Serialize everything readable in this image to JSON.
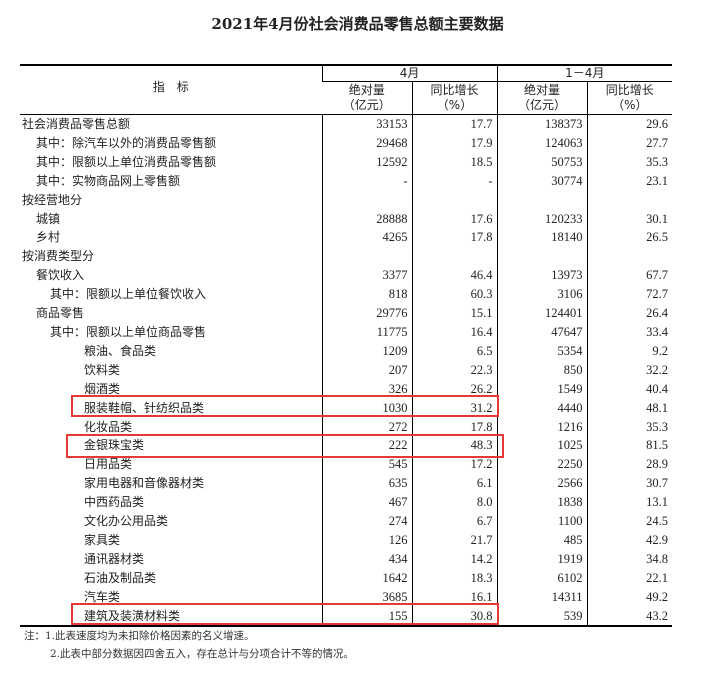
{
  "title": "2021年4月份社会消费品零售总额主要数据",
  "header": {
    "indicator": "指　标",
    "period1": "4月",
    "period2": "1－4月",
    "abs": "绝对量",
    "abs_unit": "（亿元）",
    "yoy": "同比增长",
    "yoy_unit": "（%）"
  },
  "rows": [
    {
      "label": "社会消费品零售总额",
      "level": 0,
      "v": [
        "33153",
        "17.7",
        "138373",
        "29.6"
      ]
    },
    {
      "label": "其中：除汽车以外的消费品零售额",
      "level": 1,
      "v": [
        "29468",
        "17.9",
        "124063",
        "27.7"
      ]
    },
    {
      "label": "其中：限额以上单位消费品零售额",
      "level": 1,
      "v": [
        "12592",
        "18.5",
        "50753",
        "35.3"
      ]
    },
    {
      "label": "其中：实物商品网上零售额",
      "level": 1,
      "v": [
        "-",
        "-",
        "30774",
        "23.1"
      ]
    },
    {
      "label": "按经营地分",
      "level": 0,
      "v": [
        "",
        "",
        "",
        ""
      ]
    },
    {
      "label": "城镇",
      "level": 1,
      "v": [
        "28888",
        "17.6",
        "120233",
        "30.1"
      ]
    },
    {
      "label": "乡村",
      "level": 1,
      "v": [
        "4265",
        "17.8",
        "18140",
        "26.5"
      ]
    },
    {
      "label": "按消费类型分",
      "level": 0,
      "v": [
        "",
        "",
        "",
        ""
      ]
    },
    {
      "label": "餐饮收入",
      "level": 1,
      "v": [
        "3377",
        "46.4",
        "13973",
        "67.7"
      ]
    },
    {
      "label": "其中：限额以上单位餐饮收入",
      "level": 2,
      "v": [
        "818",
        "60.3",
        "3106",
        "72.7"
      ]
    },
    {
      "label": "商品零售",
      "level": 1,
      "v": [
        "29776",
        "15.1",
        "124401",
        "26.4"
      ]
    },
    {
      "label": "其中：限额以上单位商品零售",
      "level": 2,
      "v": [
        "11775",
        "16.4",
        "47647",
        "33.4"
      ]
    },
    {
      "label": "粮油、食品类",
      "level": 3,
      "v": [
        "1209",
        "6.5",
        "5354",
        "9.2"
      ]
    },
    {
      "label": "饮料类",
      "level": 3,
      "v": [
        "207",
        "22.3",
        "850",
        "32.2"
      ]
    },
    {
      "label": "烟酒类",
      "level": 3,
      "v": [
        "326",
        "26.2",
        "1549",
        "40.4"
      ]
    },
    {
      "label": "服装鞋帽、针纺织品类",
      "level": 3,
      "v": [
        "1030",
        "31.2",
        "4440",
        "48.1"
      ]
    },
    {
      "label": "化妆品类",
      "level": 3,
      "v": [
        "272",
        "17.8",
        "1216",
        "35.3"
      ]
    },
    {
      "label": "金银珠宝类",
      "level": 3,
      "v": [
        "222",
        "48.3",
        "1025",
        "81.5"
      ]
    },
    {
      "label": "日用品类",
      "level": 3,
      "v": [
        "545",
        "17.2",
        "2250",
        "28.9"
      ]
    },
    {
      "label": "家用电器和音像器材类",
      "level": 3,
      "v": [
        "635",
        "6.1",
        "2566",
        "30.7"
      ]
    },
    {
      "label": "中西药品类",
      "level": 3,
      "v": [
        "467",
        "8.0",
        "1838",
        "13.1"
      ]
    },
    {
      "label": "文化办公用品类",
      "level": 3,
      "v": [
        "274",
        "6.7",
        "1100",
        "24.5"
      ]
    },
    {
      "label": "家具类",
      "level": 3,
      "v": [
        "126",
        "21.7",
        "485",
        "42.9"
      ]
    },
    {
      "label": "通讯器材类",
      "level": 3,
      "v": [
        "434",
        "14.2",
        "1919",
        "34.8"
      ]
    },
    {
      "label": "石油及制品类",
      "level": 3,
      "v": [
        "1642",
        "18.3",
        "6102",
        "22.1"
      ]
    },
    {
      "label": "汽车类",
      "level": 3,
      "v": [
        "3685",
        "16.1",
        "14311",
        "49.2"
      ]
    },
    {
      "label": "建筑及装潢材料类",
      "level": 3,
      "v": [
        "155",
        "30.8",
        "539",
        "43.2"
      ]
    }
  ],
  "highlight_color": "#e53935",
  "highlighted_rows": [
    "服装鞋帽、针纺织品类",
    "金银珠宝类",
    "建筑及装潢材料类"
  ],
  "notes": [
    "注：1.此表速度均为未扣除价格因素的名义增速。",
    "2.此表中部分数据因四舍五入，存在总计与分项合计不等的情况。"
  ]
}
